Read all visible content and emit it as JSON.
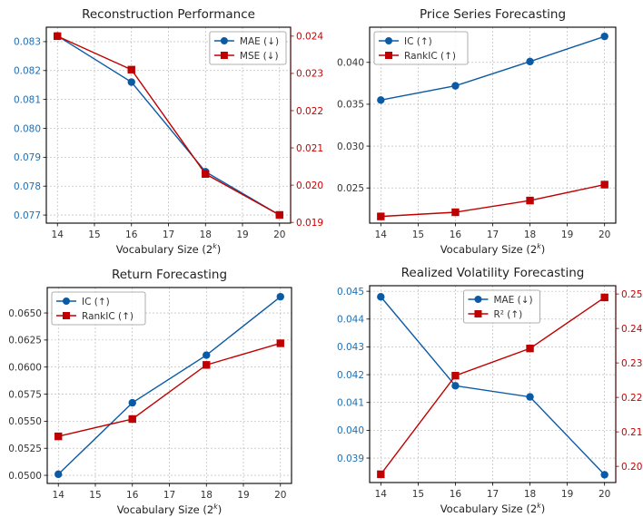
{
  "colors": {
    "blue": "#0b5aa5",
    "red": "#c00000",
    "blue_tick": "#1f6fb2",
    "red_tick": "#cc0000",
    "grid": "#b0b0b0",
    "spine": "#000000",
    "right_spine": "#5a1010"
  },
  "chart_data": [
    {
      "type": "line",
      "title": "Reconstruction Performance",
      "xlabel": "Vocabulary Size (2^k)",
      "x": [
        14,
        16,
        18,
        20
      ],
      "xticks": [
        14,
        15,
        16,
        17,
        18,
        19,
        20
      ],
      "xlim": [
        13.7,
        20.3
      ],
      "grid": true,
      "legend_position": "top-right",
      "dual_axis": true,
      "left_axis": {
        "ylim": [
          0.07672,
          0.0835
        ],
        "ticks": [
          0.077,
          0.078,
          0.079,
          0.08,
          0.081,
          0.082,
          0.083
        ],
        "tick_labels": [
          "0.077",
          "0.078",
          "0.079",
          "0.080",
          "0.081",
          "0.082",
          "0.083"
        ],
        "colored": true
      },
      "right_axis": {
        "ylim": [
          0.01898,
          0.02424
        ],
        "ticks": [
          0.019,
          0.02,
          0.021,
          0.022,
          0.023,
          0.024
        ],
        "tick_labels": [
          "0.019",
          "0.020",
          "0.021",
          "0.022",
          "0.023",
          "0.024"
        ]
      },
      "series": [
        {
          "name": "MAE (↓)",
          "axis": "left",
          "marker": "circle",
          "color": "blue",
          "values": [
            0.0832,
            0.0816,
            0.0785,
            0.077
          ]
        },
        {
          "name": "MSE (↓)",
          "axis": "right",
          "marker": "square",
          "color": "red",
          "values": [
            0.024,
            0.0231,
            0.0203,
            0.0192
          ]
        }
      ]
    },
    {
      "type": "line",
      "title": "Price Series Forecasting",
      "xlabel": "Vocabulary Size (2^k)",
      "x": [
        14,
        16,
        18,
        20
      ],
      "xticks": [
        14,
        15,
        16,
        17,
        18,
        19,
        20
      ],
      "xlim": [
        13.7,
        20.3
      ],
      "grid": true,
      "legend_position": "top-left",
      "dual_axis": false,
      "left_axis": {
        "ylim": [
          0.0208,
          0.0442
        ],
        "ticks": [
          0.025,
          0.03,
          0.035,
          0.04
        ],
        "tick_labels": [
          "0.025",
          "0.030",
          "0.035",
          "0.040"
        ],
        "colored": false
      },
      "series": [
        {
          "name": "IC (↑)",
          "axis": "left",
          "marker": "circle",
          "color": "blue",
          "values": [
            0.0355,
            0.0372,
            0.0401,
            0.0431
          ]
        },
        {
          "name": "RankIC (↑)",
          "axis": "left",
          "marker": "square",
          "color": "red",
          "values": [
            0.0216,
            0.0221,
            0.0235,
            0.0254
          ]
        }
      ]
    },
    {
      "type": "line",
      "title": "Return Forecasting",
      "xlabel": "Vocabulary Size (2^k)",
      "x": [
        14,
        16,
        18,
        20
      ],
      "xticks": [
        14,
        15,
        16,
        17,
        18,
        19,
        20
      ],
      "xlim": [
        13.7,
        20.3
      ],
      "grid": true,
      "legend_position": "top-left",
      "dual_axis": false,
      "left_axis": {
        "ylim": [
          0.04925,
          0.06735
        ],
        "ticks": [
          0.05,
          0.0525,
          0.055,
          0.0575,
          0.06,
          0.0625,
          0.065
        ],
        "tick_labels": [
          "0.0500",
          "0.0525",
          "0.0550",
          "0.0575",
          "0.0600",
          "0.0625",
          "0.0650"
        ],
        "colored": false
      },
      "series": [
        {
          "name": "IC (↑)",
          "axis": "left",
          "marker": "circle",
          "color": "blue",
          "values": [
            0.0501,
            0.0567,
            0.0611,
            0.0665
          ]
        },
        {
          "name": "RankIC (↑)",
          "axis": "left",
          "marker": "square",
          "color": "red",
          "values": [
            0.0536,
            0.0552,
            0.0602,
            0.0622
          ]
        }
      ]
    },
    {
      "type": "line",
      "title": "Realized Volatility Forecasting",
      "xlabel": "Vocabulary Size (2^k)",
      "x": [
        14,
        16,
        18,
        20
      ],
      "xticks": [
        14,
        15,
        16,
        17,
        18,
        19,
        20
      ],
      "xlim": [
        13.7,
        20.3
      ],
      "grid": true,
      "legend_position": "top-center",
      "dual_axis": true,
      "left_axis": {
        "ylim": [
          0.03812,
          0.0452
        ],
        "ticks": [
          0.039,
          0.04,
          0.041,
          0.042,
          0.043,
          0.044,
          0.045
        ],
        "tick_labels": [
          "0.039",
          "0.040",
          "0.041",
          "0.042",
          "0.043",
          "0.044",
          "0.045"
        ],
        "colored": true
      },
      "right_axis": {
        "ylim": [
          0.1953,
          0.2524
        ],
        "ticks": [
          0.2,
          0.21,
          0.22,
          0.23,
          0.24,
          0.25
        ],
        "tick_labels": [
          "0.20",
          "0.21",
          "0.22",
          "0.23",
          "0.24",
          "0.25"
        ]
      },
      "series": [
        {
          "name": "MAE (↓)",
          "axis": "left",
          "marker": "circle",
          "color": "blue",
          "values": [
            0.0448,
            0.0416,
            0.0412,
            0.0384
          ]
        },
        {
          "name": "R² (↑)",
          "axis": "right",
          "marker": "square",
          "color": "red",
          "values": [
            0.1977,
            0.2263,
            0.2342,
            0.249
          ]
        }
      ]
    }
  ]
}
